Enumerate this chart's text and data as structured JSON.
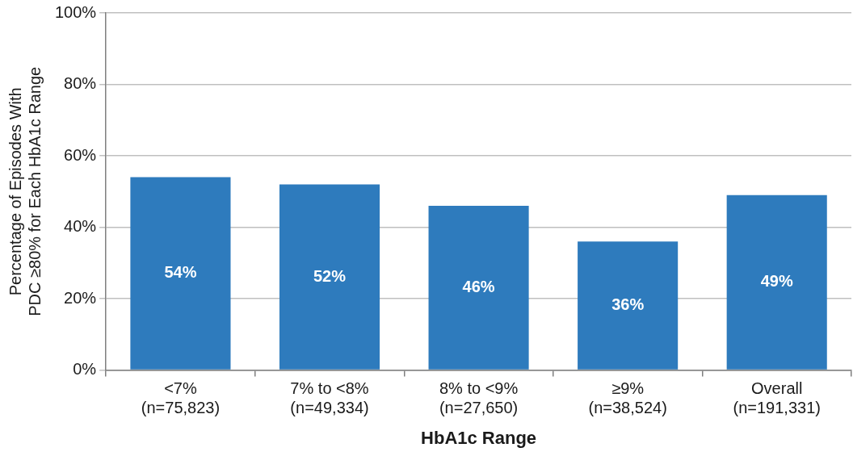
{
  "chart_data": {
    "type": "bar",
    "xlabel": "HbA1c Range",
    "ylabel": "Percentage of Episodes With\nPDC ≥80% for Each HbA1c Range",
    "categories": [
      "<7%\n(n=75,823)",
      "7% to <8%\n(n=49,334)",
      "8% to <9%\n(n=27,650)",
      "≥9%\n(n=38,524)",
      "Overall\n(n=191,331)"
    ],
    "values": [
      54,
      52,
      46,
      36,
      49
    ],
    "color": "#2e7bbd",
    "ylim": [
      0,
      100
    ],
    "yticks": [
      {
        "value": 0,
        "label": "0%"
      },
      {
        "value": 20,
        "label": "20%"
      },
      {
        "value": 40,
        "label": "40%"
      },
      {
        "value": 60,
        "label": "60%"
      },
      {
        "value": 80,
        "label": "80%"
      },
      {
        "value": 100,
        "label": "100%"
      }
    ],
    "value_labels": [
      "54%",
      "52%",
      "46%",
      "36%",
      "49%"
    ],
    "grid": "y",
    "legend": false
  }
}
